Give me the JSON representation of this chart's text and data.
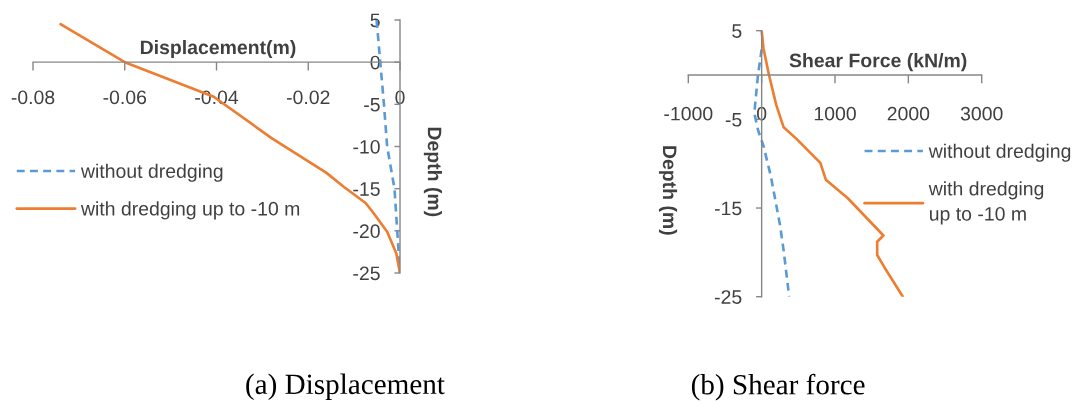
{
  "chart_data": [
    {
      "type": "line",
      "title": "(a) Displacement",
      "xlabel": "Displacement(m)",
      "ylabel": "Depth (m)",
      "xlim": [
        -0.08,
        0
      ],
      "xticks": [
        -0.08,
        -0.06,
        -0.04,
        -0.02,
        0
      ],
      "ylim": [
        -25,
        5
      ],
      "yticks": [
        5,
        0,
        -5,
        -10,
        -15,
        -20,
        -25
      ],
      "legend": "left",
      "grid": false,
      "series": [
        {
          "name": "without dredging",
          "color": "#5b9bd5",
          "line_style": "dashed",
          "x": [
            -0.0051,
            -0.0043,
            -0.0035,
            -0.0028,
            -0.0012,
            -0.0006,
            0
          ],
          "values": [
            5,
            0,
            -5,
            -10,
            -15,
            -20,
            -25
          ]
        },
        {
          "name": "with dredging up to -10 m",
          "color": "#ed7d31",
          "line_style": "solid",
          "x": [
            -0.074,
            -0.06,
            -0.0406,
            -0.028,
            -0.0161,
            -0.0122,
            -0.0075,
            -0.0059,
            -0.0028,
            -0.0008,
            0
          ],
          "values": [
            4.5,
            0,
            -4.1,
            -9.0,
            -13.1,
            -14.8,
            -16.7,
            -17.8,
            -20.1,
            -22.7,
            -25
          ]
        }
      ]
    },
    {
      "type": "line",
      "title": "(b) Shear force",
      "xlabel": "Shear Force (kN/m)",
      "ylabel": "Depth (m)",
      "xlim": [
        -1000,
        3000
      ],
      "xticks": [
        -1000,
        0,
        1000,
        2000,
        3000
      ],
      "ylim": [
        -25,
        5
      ],
      "yticks": [
        5,
        -5,
        -15,
        -25
      ],
      "legend": "right",
      "grid": false,
      "series": [
        {
          "name": "without dredging",
          "color": "#5b9bd5",
          "line_style": "dashed",
          "x": [
            0,
            -50,
            -100,
            -50,
            25,
            125,
            250,
            300,
            375
          ],
          "values": [
            2.9,
            0,
            -4.3,
            -6.2,
            -8,
            -11.4,
            -16.9,
            -19.8,
            -25
          ]
        },
        {
          "name": "with dredging\nup to -10 m",
          "color": "#ed7d31",
          "line_style": "solid",
          "x": [
            0,
            25,
            100,
            200,
            300,
            475,
            800,
            875,
            1175,
            1660,
            1575,
            1575,
            1675,
            1925
          ],
          "values": [
            5,
            3,
            0,
            -3.4,
            -5.9,
            -7.2,
            -9.9,
            -11.8,
            -13.9,
            -18.1,
            -18.8,
            -20.3,
            -21.7,
            -25
          ]
        }
      ]
    }
  ]
}
